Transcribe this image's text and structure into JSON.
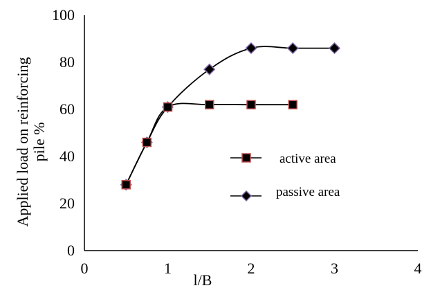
{
  "chart_data": {
    "type": "line",
    "xlabel": "l/B",
    "ylabel_line1": "Applied load on reinforcing",
    "ylabel_line2": "pile %",
    "xlim": [
      0,
      4
    ],
    "ylim": [
      0,
      100
    ],
    "xticks": [
      "0",
      "1",
      "2",
      "3",
      "4"
    ],
    "yticks": [
      "0",
      "20",
      "40",
      "60",
      "80",
      "100"
    ],
    "grid": false,
    "legend_position": "center-right",
    "series": [
      {
        "name": "active area",
        "marker": "square",
        "marker_fill": "#000000",
        "marker_edge": "#c0504d",
        "x": [
          0.5,
          0.75,
          1,
          1.5,
          2,
          2.5
        ],
        "y": [
          28,
          46,
          61,
          62,
          62,
          62
        ]
      },
      {
        "name": "passive area",
        "marker": "diamond",
        "marker_fill": "#000000",
        "marker_edge": "#8064a2",
        "x": [
          0.5,
          0.75,
          1,
          1.5,
          2,
          2.5,
          3
        ],
        "y": [
          28,
          46,
          61,
          77,
          86,
          86,
          86
        ]
      }
    ]
  }
}
